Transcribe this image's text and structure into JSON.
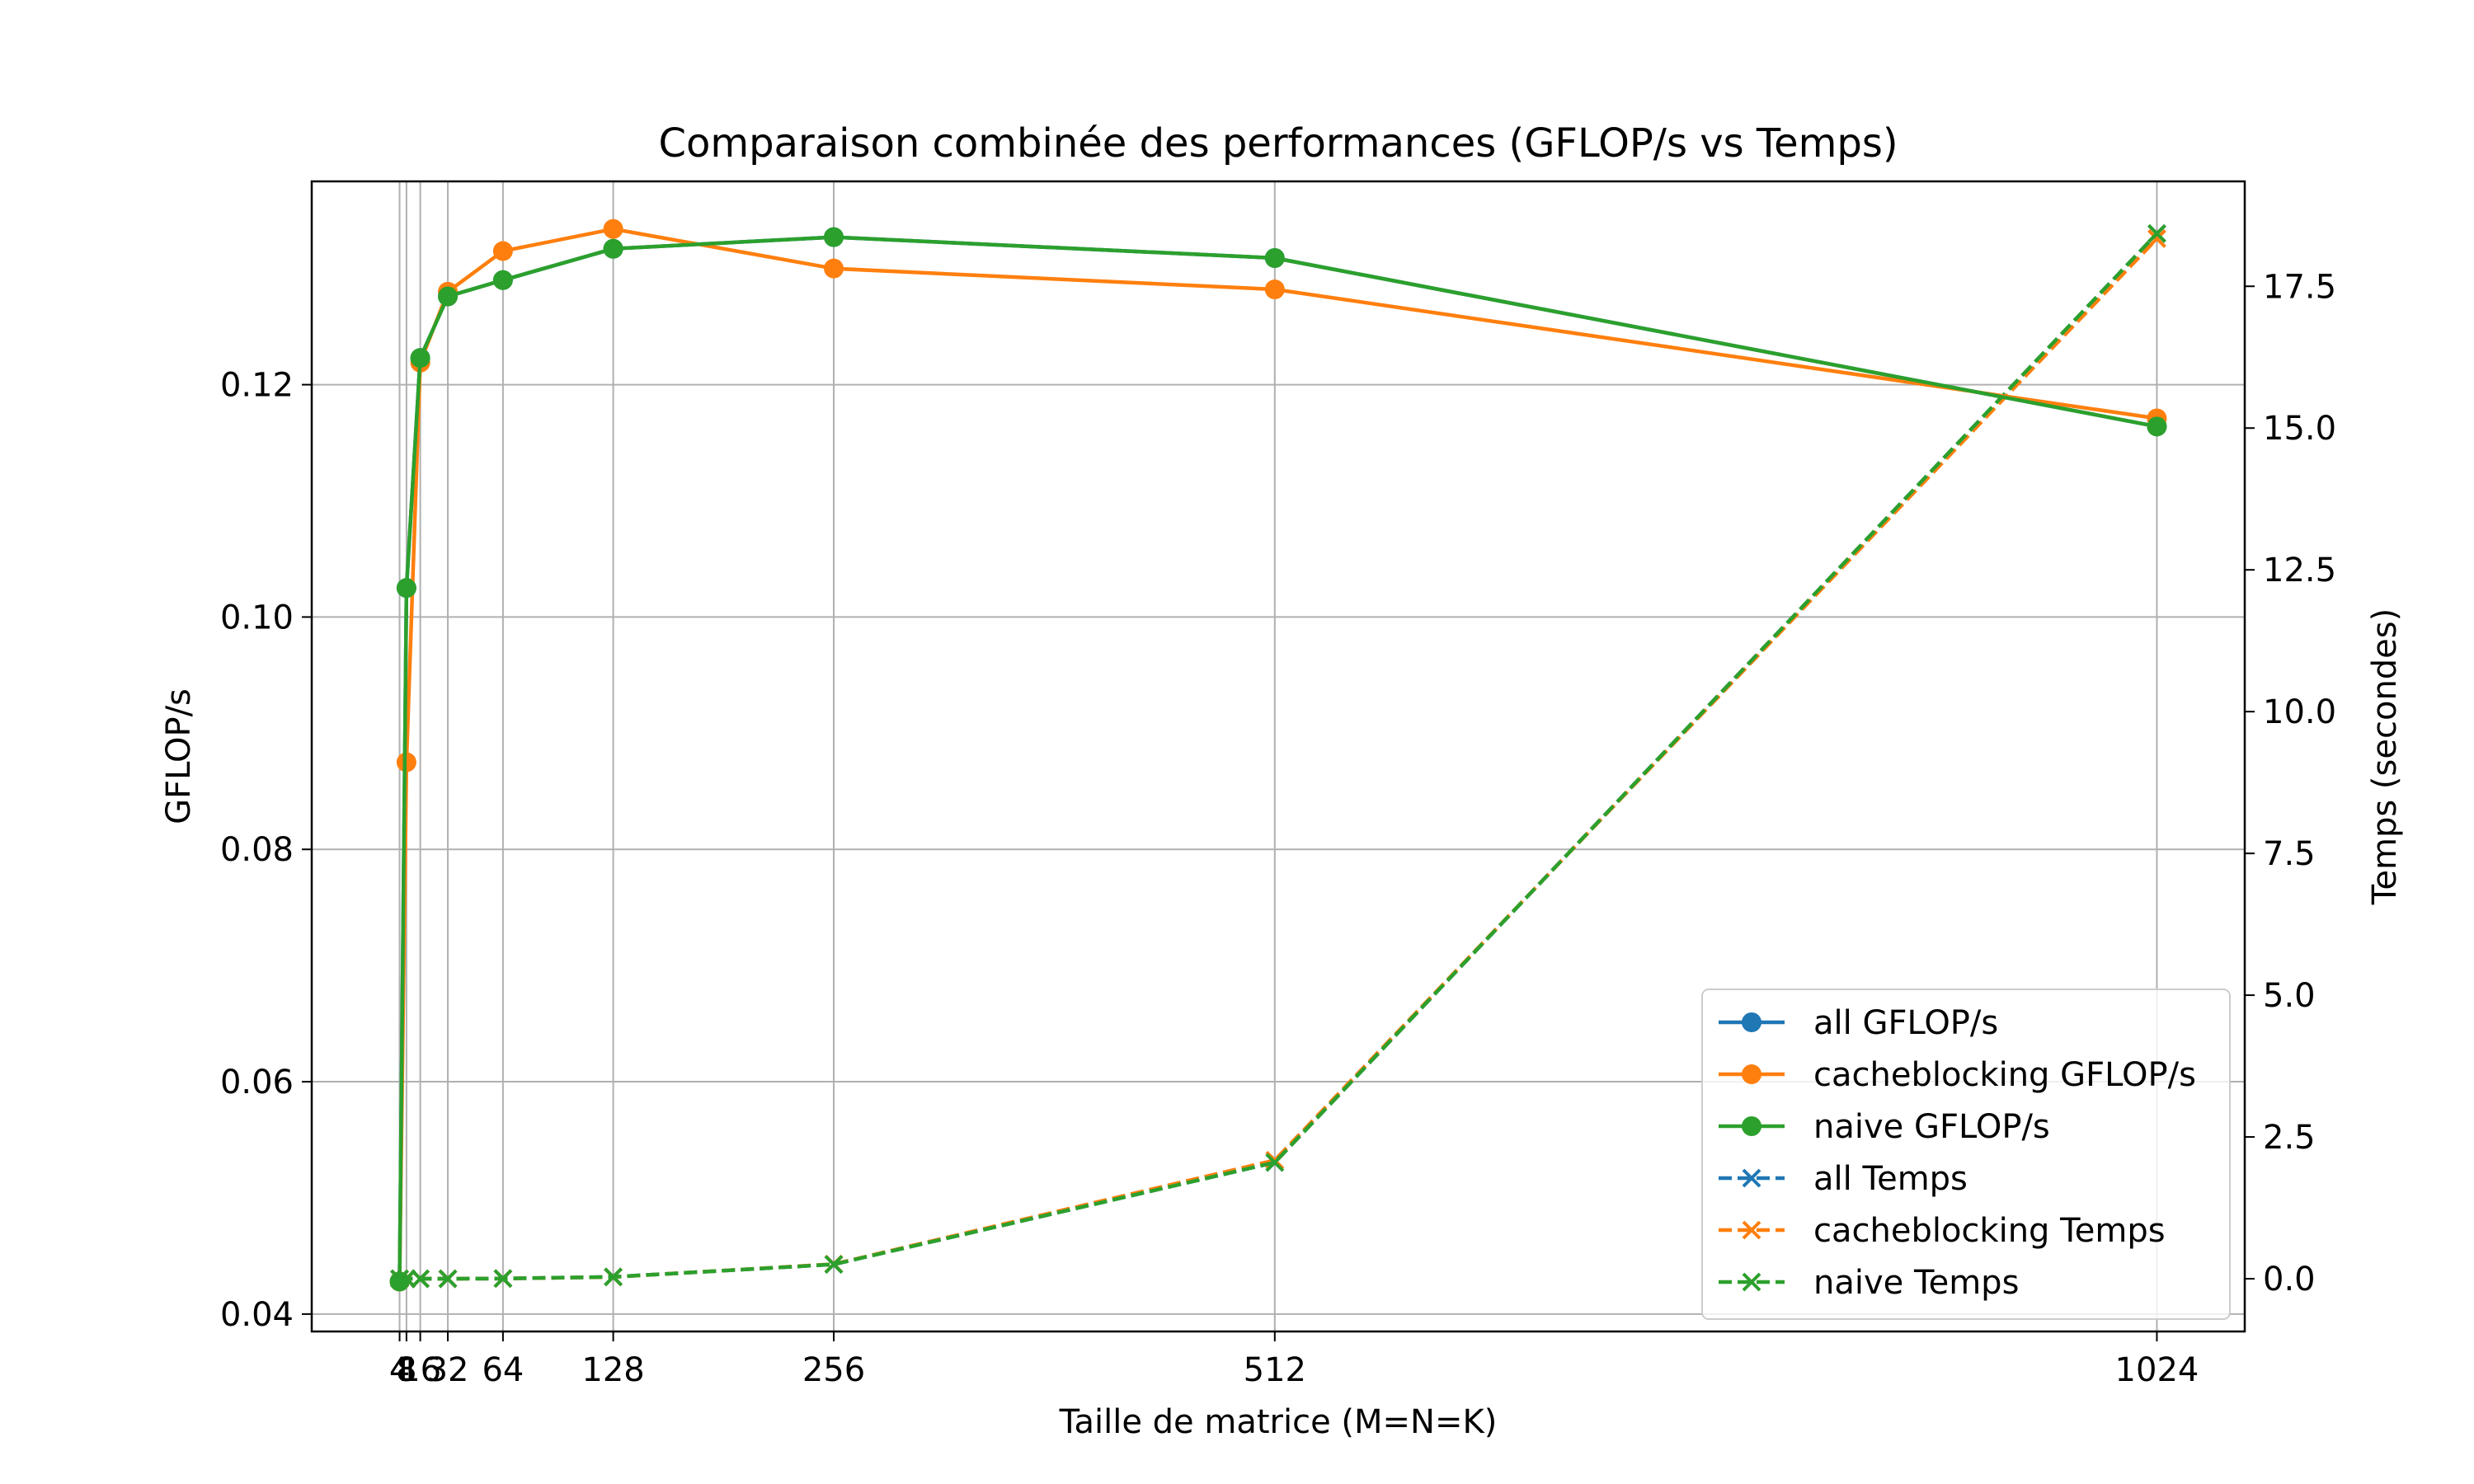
{
  "chart_data": {
    "type": "line",
    "title": "Comparaison combinée des performances (GFLOP/s vs Temps)",
    "xlabel": "Taille de matrice (M=N=K)",
    "ylabel_left": "GFLOP/s",
    "ylabel_right": "Temps (secondes)",
    "x_ticks": [
      4,
      8,
      16,
      32,
      64,
      128,
      256,
      512,
      1024
    ],
    "x_tick_labels": [
      "4",
      "8",
      "16",
      "32",
      "64",
      "128",
      "256",
      "512",
      "1024"
    ],
    "xlim": [
      -47,
      1075
    ],
    "ylim_left": [
      0.0385,
      0.1375
    ],
    "ylim_right": [
      -0.93,
      19.35
    ],
    "y_ticks_left": [
      0.04,
      0.06,
      0.08,
      0.1,
      0.12
    ],
    "y_tick_labels_left": [
      "0.04",
      "0.06",
      "0.08",
      "0.10",
      "0.12"
    ],
    "y_ticks_right": [
      0.0,
      2.5,
      5.0,
      7.5,
      10.0,
      12.5,
      15.0,
      17.5
    ],
    "y_tick_labels_right": [
      "0.0",
      "2.5",
      "5.0",
      "7.5",
      "10.0",
      "12.5",
      "15.0",
      "17.5"
    ],
    "grid": true,
    "legend_position": "bottom-right",
    "colors": {
      "all": "#1f77b4",
      "cacheblocking": "#ff7f0e",
      "naive": "#2ca02c",
      "grid": "#b0b0b0",
      "axes": "#000000"
    },
    "series": [
      {
        "name": "all GFLOP/s",
        "axis": "left",
        "marker": "circle",
        "linestyle": "solid",
        "color_key": "all",
        "x": [
          4,
          8,
          16,
          32,
          64,
          128,
          256,
          512,
          1024
        ],
        "values": [
          0.0428,
          0.1025,
          0.1223,
          0.1276,
          0.129,
          0.1317,
          0.1327,
          0.1309,
          0.1164
        ]
      },
      {
        "name": "cacheblocking GFLOP/s",
        "axis": "left",
        "marker": "circle",
        "linestyle": "solid",
        "color_key": "cacheblocking",
        "x": [
          4,
          8,
          16,
          32,
          64,
          128,
          256,
          512,
          1024
        ],
        "values": [
          0.0428,
          0.0875,
          0.1219,
          0.128,
          0.1315,
          0.1334,
          0.13,
          0.1282,
          0.1171
        ]
      },
      {
        "name": "naive GFLOP/s",
        "axis": "left",
        "marker": "circle",
        "linestyle": "solid",
        "color_key": "naive",
        "x": [
          4,
          8,
          16,
          32,
          64,
          128,
          256,
          512,
          1024
        ],
        "values": [
          0.0428,
          0.1025,
          0.1223,
          0.1276,
          0.129,
          0.1317,
          0.1327,
          0.1309,
          0.1164
        ]
      },
      {
        "name": "all Temps",
        "axis": "right",
        "marker": "x",
        "linestyle": "dashed",
        "color_key": "all",
        "x": [
          4,
          8,
          16,
          32,
          64,
          128,
          256,
          512,
          1024
        ],
        "values": [
          0.0,
          0.0,
          0.0,
          0.0,
          0.004,
          0.032,
          0.253,
          2.05,
          18.43
        ]
      },
      {
        "name": "cacheblocking Temps",
        "axis": "right",
        "marker": "x",
        "linestyle": "dashed",
        "color_key": "cacheblocking",
        "x": [
          4,
          8,
          16,
          32,
          64,
          128,
          256,
          512,
          1024
        ],
        "values": [
          0.0,
          0.0,
          0.0,
          0.0,
          0.004,
          0.031,
          0.258,
          2.09,
          18.34
        ]
      },
      {
        "name": "naive Temps",
        "axis": "right",
        "marker": "x",
        "linestyle": "dashed",
        "color_key": "naive",
        "x": [
          4,
          8,
          16,
          32,
          64,
          128,
          256,
          512,
          1024
        ],
        "values": [
          0.0,
          0.0,
          0.0,
          0.0,
          0.004,
          0.032,
          0.253,
          2.05,
          18.43
        ]
      }
    ]
  }
}
